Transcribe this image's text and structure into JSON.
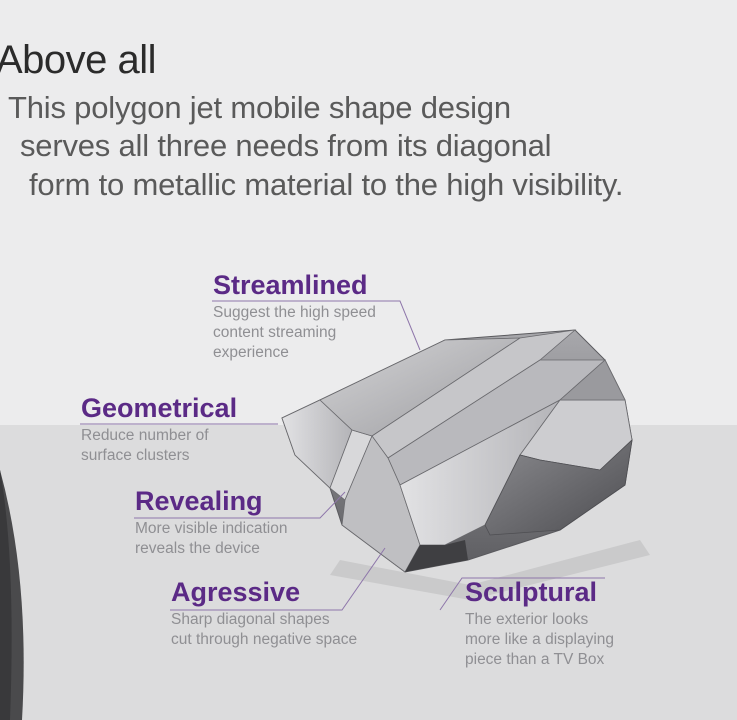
{
  "heading": "Above all",
  "intro": [
    "This polygon jet mobile shape design",
    "serves all three needs from its diagonal",
    "form to metallic material to the high visibility."
  ],
  "features": [
    {
      "title": "Streamlined",
      "desc": [
        "Suggest the high speed",
        "content streaming",
        "experience"
      ]
    },
    {
      "title": "Geometrical",
      "desc": [
        "Reduce number of",
        "surface clusters"
      ]
    },
    {
      "title": "Revealing",
      "desc": [
        "More visible indication",
        "reveals the device"
      ]
    },
    {
      "title": "Agressive",
      "desc": [
        "Sharp diagonal shapes",
        "cut through negative space"
      ]
    },
    {
      "title": "Sculptural",
      "desc": [
        "The exterior looks",
        "more like a displaying",
        "piece than a TV Box"
      ]
    }
  ],
  "colors": {
    "accent": "#5b2a86",
    "body_text": "#8f8f93",
    "heading": "#2b2b2b"
  }
}
